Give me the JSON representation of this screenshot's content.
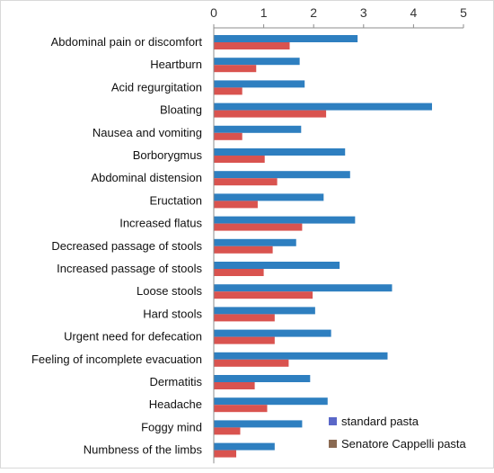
{
  "chart_data": {
    "type": "bar",
    "orientation": "horizontal",
    "categories": [
      "Abdominal pain or discomfort",
      "Heartburn",
      "Acid regurgitation",
      "Bloating",
      "Nausea and vomiting",
      "Borborygmus",
      "Abdominal distension",
      "Eructation",
      "Increased flatus",
      "Decreased passage of stools",
      "Increased passage of stools",
      "Loose stools",
      "Hard stools",
      "Urgent need for defecation",
      "Feeling of incomplete evacuation",
      "Dermatitis",
      "Headache",
      "Foggy mind",
      "Numbness of the limbs"
    ],
    "series": [
      {
        "name": "standard pasta",
        "color": "#2e7fc0",
        "values": [
          2.88,
          1.72,
          1.82,
          4.37,
          1.75,
          2.63,
          2.73,
          2.2,
          2.83,
          1.65,
          2.52,
          3.57,
          2.03,
          2.35,
          3.48,
          1.93,
          2.28,
          1.77,
          1.22
        ]
      },
      {
        "name": "Senatore Cappelli pasta",
        "color": "#d9534f",
        "values": [
          1.52,
          0.85,
          0.57,
          2.25,
          0.57,
          1.02,
          1.27,
          0.88,
          1.77,
          1.18,
          1.0,
          1.98,
          1.22,
          1.22,
          1.5,
          0.82,
          1.07,
          0.53,
          0.45
        ]
      }
    ],
    "xlim": [
      0,
      5
    ],
    "xticks": [
      "0",
      "1",
      "2",
      "3",
      "4",
      "5"
    ],
    "x_axis_position": "top",
    "grid": false,
    "legend_position": "bottom-right",
    "legend_marker_colors": [
      "#5a67c8",
      "#8a6a52"
    ]
  }
}
